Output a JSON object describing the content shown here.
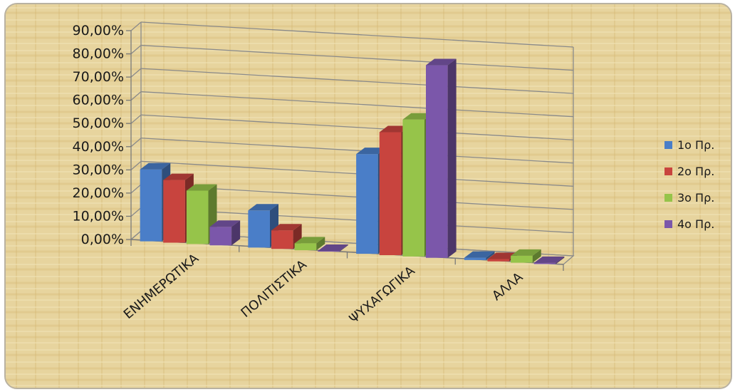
{
  "colors": {
    "background": "#e6d29b",
    "grid": "#8a8a8a",
    "axis": "#7a7a7a"
  },
  "chart_data": {
    "type": "bar",
    "title": "",
    "xlabel": "",
    "ylabel": "",
    "ylim": [
      0,
      90
    ],
    "y_ticks": [
      "0,00%",
      "10,00%",
      "20,00%",
      "30,00%",
      "40,00%",
      "50,00%",
      "60,00%",
      "70,00%",
      "80,00%",
      "90,00%"
    ],
    "categories": [
      "ΕΝΗΜΕΡΩΤΙΚΑ",
      "ΠΟΛΙΤΙΣΤΙΚΑ",
      "ΨΥΧΑΓΩΓΙΚΑ",
      "ΑΛΛΑ"
    ],
    "series": [
      {
        "name": "1ο Πρ.",
        "color": "#4a7ec8",
        "values": [
          31,
          16,
          43,
          1
        ]
      },
      {
        "name": "2ο Πρ.",
        "color": "#c8443e",
        "values": [
          27,
          8,
          53,
          1
        ]
      },
      {
        "name": "3ο Πρ.",
        "color": "#96c44a",
        "values": [
          23,
          3,
          59,
          3
        ]
      },
      {
        "name": "4ο Πρ.",
        "color": "#7b57aa",
        "values": [
          8,
          0.3,
          83,
          0.5
        ]
      }
    ],
    "grid": true,
    "legend_position": "right"
  }
}
